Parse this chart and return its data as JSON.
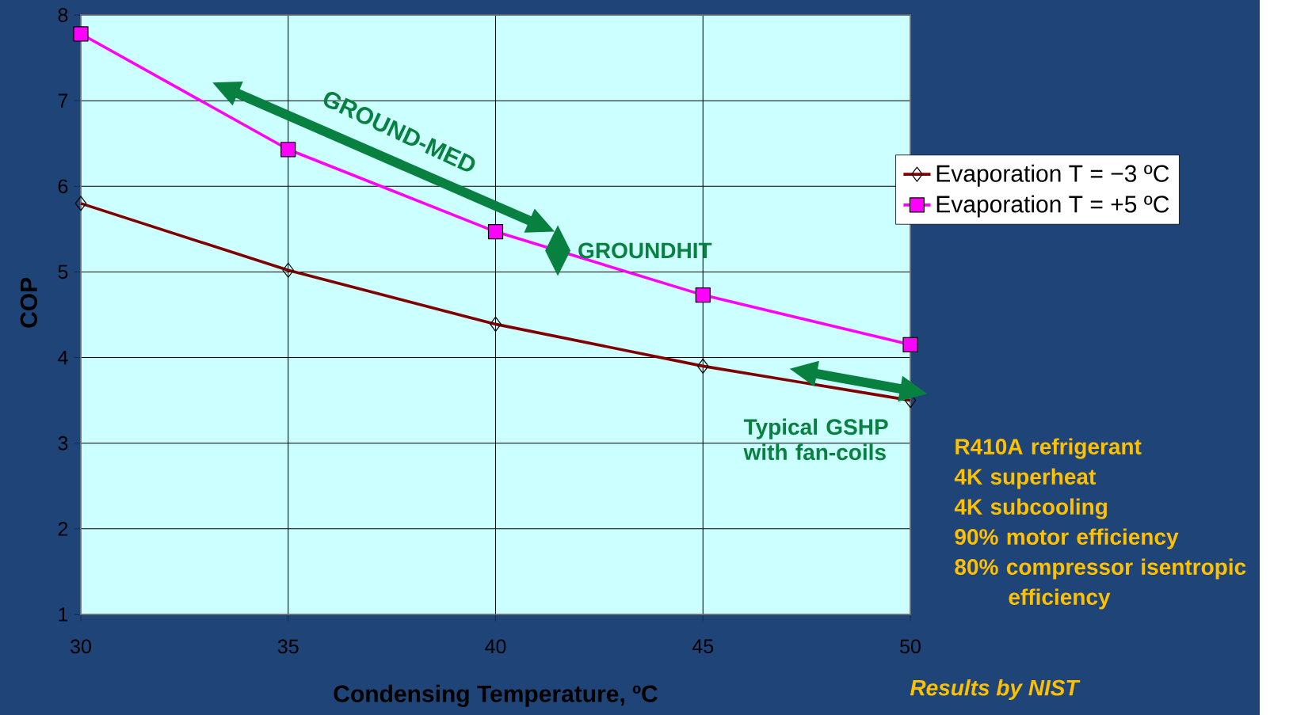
{
  "chart_data": {
    "type": "line",
    "xlabel": "Condensing Temperature, ºC",
    "ylabel": "COP",
    "x": [
      30,
      35,
      40,
      45,
      50
    ],
    "series": [
      {
        "name": "Evaporation T = −3 ºC",
        "color": "#800000",
        "marker": "diamond",
        "values": [
          5.8,
          5.02,
          4.39,
          3.9,
          3.5
        ]
      },
      {
        "name": "Evaporation T = +5 ºC",
        "color": "#ff00ff",
        "marker": "square",
        "values": [
          7.78,
          6.43,
          5.47,
          4.73,
          4.15
        ]
      }
    ],
    "xlim": [
      30,
      50
    ],
    "xticks": [
      30,
      35,
      40,
      45,
      50
    ],
    "ylim": [
      1,
      8
    ],
    "yticks": [
      1,
      2,
      3,
      4,
      5,
      6,
      7,
      8
    ],
    "grid": true,
    "legend": "right",
    "annotations": [
      "GROUND-MED",
      {
        "text": "GROUNDHIT",
        "x": 41.5,
        "y": 5.25
      },
      "Typical GSHP with fan-coils",
      "R410A refrigerant",
      "4K superheat",
      "4K subcooling",
      "90% motor efficiency",
      "80% compressor isentropic efficiency",
      "Results by NIST"
    ]
  }
}
